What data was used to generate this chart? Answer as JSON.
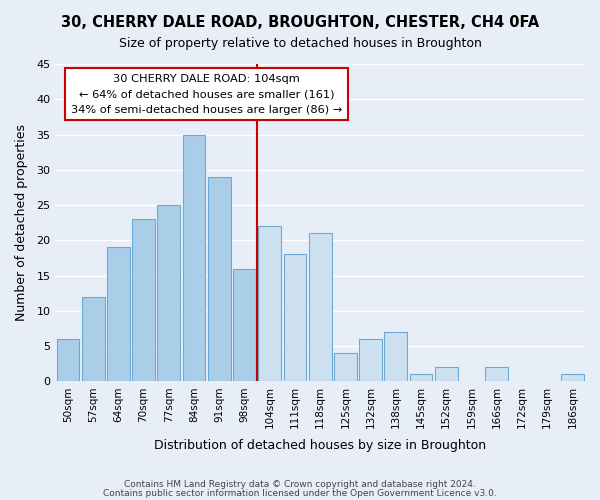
{
  "title": "30, CHERRY DALE ROAD, BROUGHTON, CHESTER, CH4 0FA",
  "subtitle": "Size of property relative to detached houses in Broughton",
  "xlabel": "Distribution of detached houses by size in Broughton",
  "ylabel": "Number of detached properties",
  "footer_line1": "Contains HM Land Registry data © Crown copyright and database right 2024.",
  "footer_line2": "Contains public sector information licensed under the Open Government Licence v3.0.",
  "bar_labels": [
    "50sqm",
    "57sqm",
    "64sqm",
    "70sqm",
    "77sqm",
    "84sqm",
    "91sqm",
    "98sqm",
    "104sqm",
    "111sqm",
    "118sqm",
    "125sqm",
    "132sqm",
    "138sqm",
    "145sqm",
    "152sqm",
    "159sqm",
    "166sqm",
    "172sqm",
    "179sqm",
    "186sqm"
  ],
  "bar_values": [
    6,
    12,
    19,
    23,
    25,
    35,
    29,
    16,
    22,
    18,
    21,
    4,
    6,
    7,
    1,
    2,
    0,
    2,
    0,
    0,
    1
  ],
  "bar_color_normal": "#aacde8",
  "bar_color_highlight": "#cce0f0",
  "bar_edge_color": "#6aaad4",
  "highlight_index": 8,
  "vline_color": "#cc0000",
  "ylim": [
    0,
    45
  ],
  "yticks": [
    0,
    5,
    10,
    15,
    20,
    25,
    30,
    35,
    40,
    45
  ],
  "annotation_title": "30 CHERRY DALE ROAD: 104sqm",
  "annotation_line1": "← 64% of detached houses are smaller (161)",
  "annotation_line2": "34% of semi-detached houses are larger (86) →",
  "annotation_box_color": "#ffffff",
  "annotation_box_edge": "#cc0000",
  "bg_color": "#e8eef8",
  "grid_color": "#ffffff"
}
